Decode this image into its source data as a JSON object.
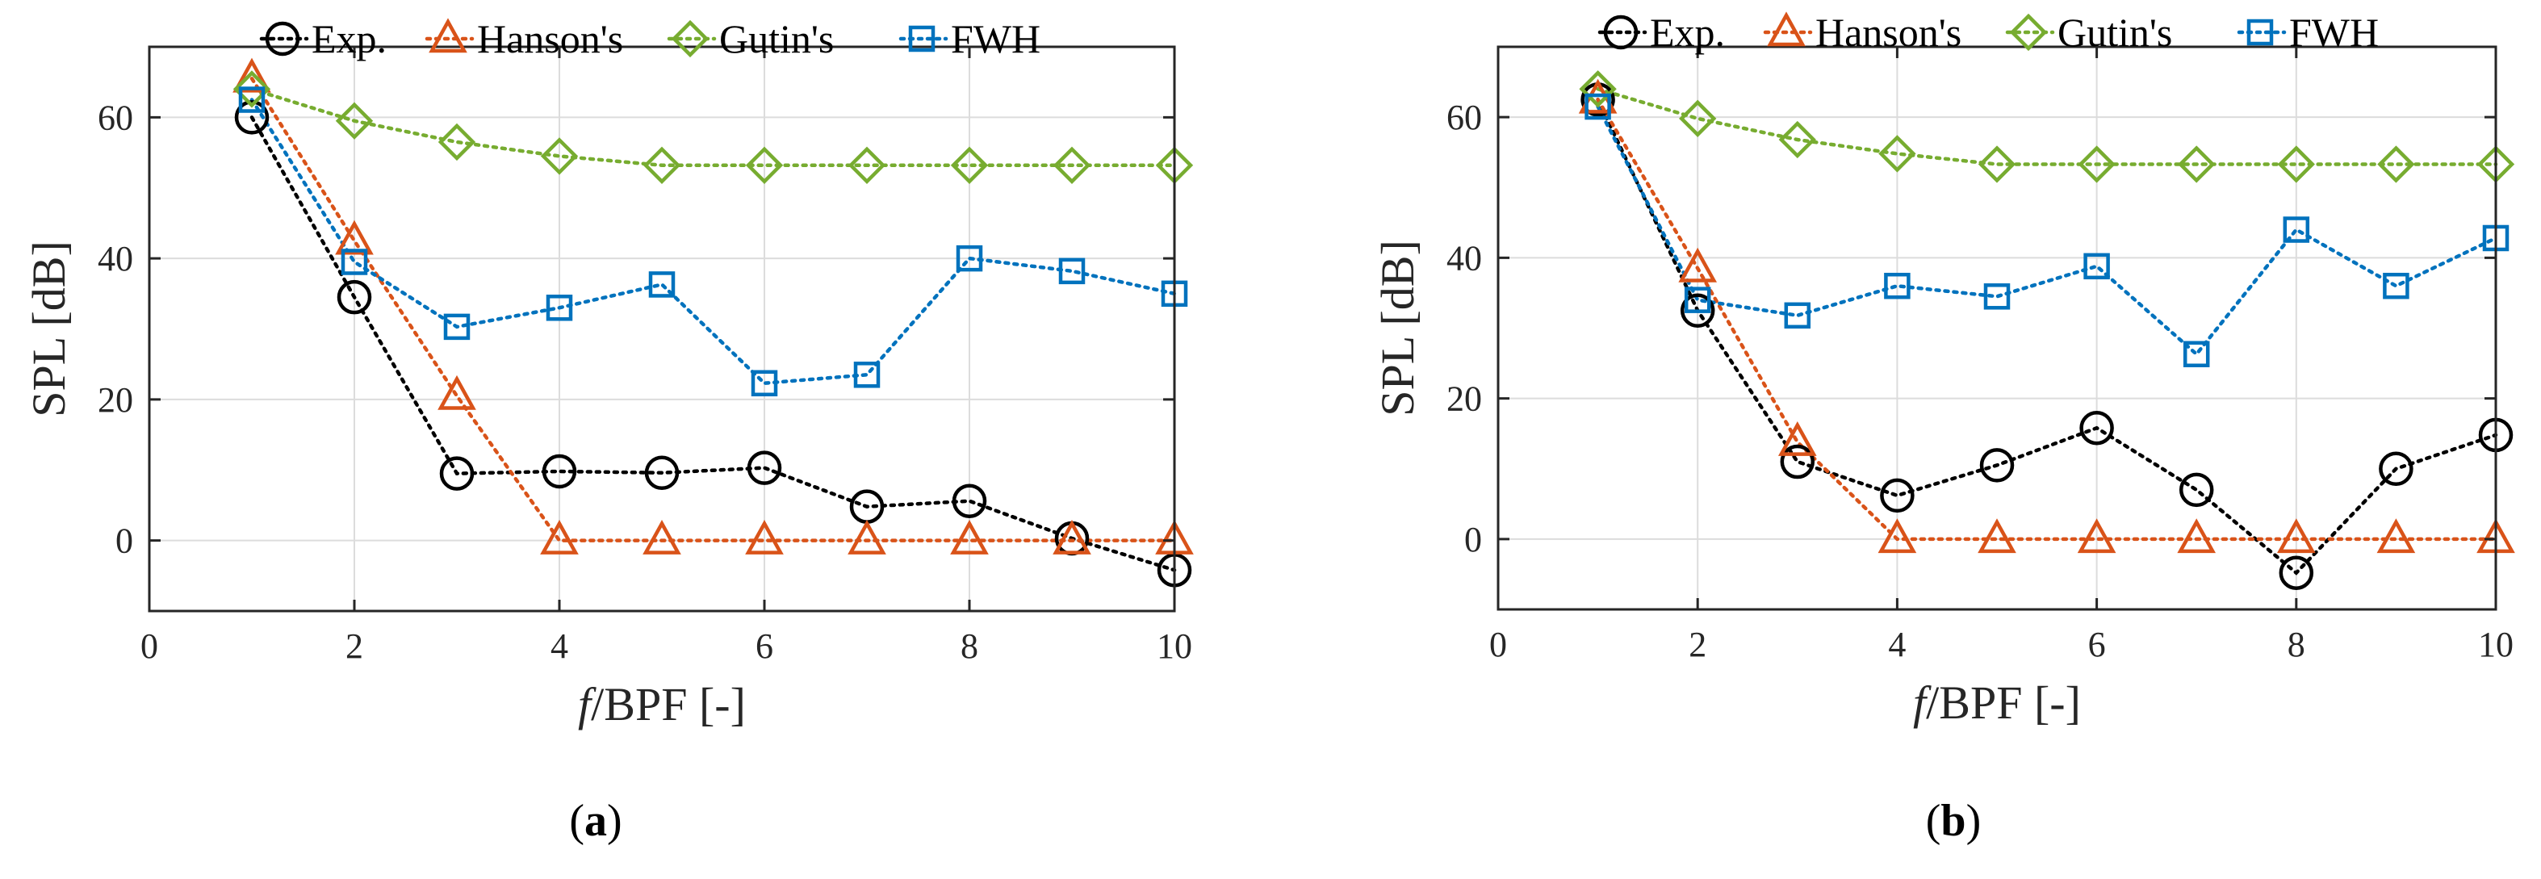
{
  "chart_data": [
    {
      "type": "line",
      "panel_label": "(a)",
      "panel_letter": "a",
      "xlabel_italic": "f",
      "xlabel_rest": "/BPF [-]",
      "ylabel": "SPL [dB]",
      "xlim": [
        0,
        10
      ],
      "ylim": [
        -10,
        70
      ],
      "xticks": [
        "0",
        "2",
        "4",
        "6",
        "8",
        "10"
      ],
      "yticks": [
        "0",
        "20",
        "40",
        "60"
      ],
      "grid": true,
      "legend_position": "top",
      "x": [
        1,
        2,
        3,
        4,
        5,
        6,
        7,
        8,
        9,
        10
      ],
      "series": [
        {
          "name": "Exp.",
          "marker": "circle",
          "color": "#000000",
          "values": [
            60,
            34.5,
            9.5,
            9.8,
            9.6,
            10.3,
            4.8,
            5.6,
            0.3,
            -4.2
          ]
        },
        {
          "name": "Hanson's",
          "marker": "triangle",
          "color": "#D95319",
          "values": [
            65.5,
            42.5,
            20.5,
            0,
            0,
            0,
            0,
            0,
            0,
            0
          ]
        },
        {
          "name": "Gutin's",
          "marker": "diamond",
          "color": "#77AC30",
          "values": [
            64,
            59.5,
            56.5,
            54.5,
            53.2,
            53.2,
            53.2,
            53.2,
            53.2,
            53.2
          ]
        },
        {
          "name": "FWH",
          "marker": "square",
          "color": "#0072BD",
          "values": [
            62.5,
            39.5,
            30.3,
            33,
            36.3,
            22.3,
            23.5,
            40,
            38.2,
            35
          ]
        }
      ]
    },
    {
      "type": "line",
      "panel_label": "(b)",
      "panel_letter": "b",
      "xlabel_italic": "f",
      "xlabel_rest": "/BPF [-]",
      "ylabel": "SPL [dB]",
      "xlim": [
        0,
        10
      ],
      "ylim": [
        -10,
        70
      ],
      "xticks": [
        "0",
        "2",
        "4",
        "6",
        "8",
        "10"
      ],
      "yticks": [
        "0",
        "20",
        "40",
        "60"
      ],
      "grid": true,
      "legend_position": "top",
      "x": [
        1,
        2,
        3,
        4,
        5,
        6,
        7,
        8,
        9,
        10
      ],
      "series": [
        {
          "name": "Exp.",
          "marker": "circle",
          "color": "#000000",
          "values": [
            62.5,
            32.5,
            11,
            6.2,
            10.5,
            15.8,
            7,
            -4.8,
            10,
            14.8
          ]
        },
        {
          "name": "Hanson's",
          "marker": "triangle",
          "color": "#D95319",
          "values": [
            62.5,
            38.5,
            13.8,
            0,
            0,
            0,
            0,
            0,
            0,
            0
          ]
        },
        {
          "name": "Gutin's",
          "marker": "diamond",
          "color": "#77AC30",
          "values": [
            64,
            59.8,
            56.8,
            54.8,
            53.3,
            53.3,
            53.3,
            53.3,
            53.3,
            53.3
          ]
        },
        {
          "name": "FWH",
          "marker": "square",
          "color": "#0072BD",
          "values": [
            61.5,
            34,
            31.8,
            36,
            34.5,
            38.8,
            26.3,
            44,
            36,
            42.8
          ]
        }
      ]
    }
  ]
}
